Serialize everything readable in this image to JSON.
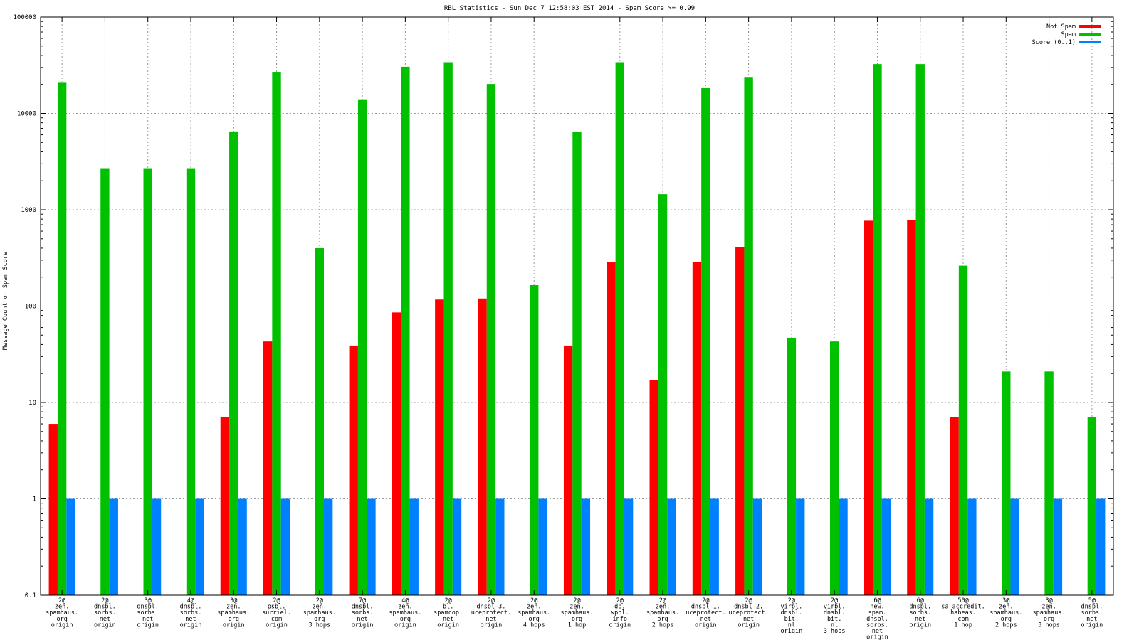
{
  "chart_data": {
    "type": "bar",
    "title": "RBL Statistics - Sun Dec  7 12:58:03 EST 2014 - Spam Score >= 0.99",
    "xlabel": "",
    "ylabel": "Message Count or Spam Score",
    "yscale": "log",
    "ylim": [
      0.1,
      100000
    ],
    "yticks": [
      0.1,
      1,
      10,
      100,
      1000,
      10000,
      100000
    ],
    "ytick_labels": [
      "0.1",
      "1",
      "10",
      "100",
      "1000",
      "10000",
      "100000"
    ],
    "grid": true,
    "legend_position": "top-right",
    "categories": [
      [
        "2@",
        "zen.",
        "spamhaus.",
        "org",
        "origin"
      ],
      [
        "2@",
        "dnsbl.",
        "sorbs.",
        "net",
        "origin"
      ],
      [
        "3@",
        "dnsbl.",
        "sorbs.",
        "net",
        "origin"
      ],
      [
        "4@",
        "dnsbl.",
        "sorbs.",
        "net",
        "origin"
      ],
      [
        "3@",
        "zen.",
        "spamhaus.",
        "org",
        "origin"
      ],
      [
        "2@",
        "psbl.",
        "surriel.",
        "com",
        "origin"
      ],
      [
        "2@",
        "zen.",
        "spamhaus.",
        "org",
        "3 hops"
      ],
      [
        "7@",
        "dnsbl.",
        "sorbs.",
        "net",
        "origin"
      ],
      [
        "4@",
        "zen.",
        "spamhaus.",
        "org",
        "origin"
      ],
      [
        "2@",
        "bl.",
        "spamcop.",
        "net",
        "origin"
      ],
      [
        "2@",
        "dnsbl-3.",
        "uceprotect.",
        "net",
        "origin"
      ],
      [
        "2@",
        "zen.",
        "spamhaus.",
        "org",
        "4 hops"
      ],
      [
        "2@",
        "zen.",
        "spamhaus.",
        "org",
        "1 hop"
      ],
      [
        "2@",
        "db.",
        "wpbl.",
        "info",
        "origin"
      ],
      [
        "2@",
        "zen.",
        "spamhaus.",
        "org",
        "2 hops"
      ],
      [
        "2@",
        "dnsbl-1.",
        "uceprotect.",
        "net",
        "origin"
      ],
      [
        "2@",
        "dnsbl-2.",
        "uceprotect.",
        "net",
        "origin"
      ],
      [
        "2@",
        "virbl.",
        "dnsbl.",
        "bit.",
        "nl",
        "origin"
      ],
      [
        "2@",
        "virbl.",
        "dnsbl.",
        "bit.",
        "nl",
        "3 hops"
      ],
      [
        "6@",
        "new.",
        "spam.",
        "dnsbl.",
        "sorbs.",
        "net",
        "origin"
      ],
      [
        "6@",
        "dnsbl.",
        "sorbs.",
        "net",
        "origin"
      ],
      [
        "50@",
        "sa-accredit.",
        "habeas.",
        "com",
        "1 hop"
      ],
      [
        "3@",
        "zen.",
        "spamhaus.",
        "org",
        "2 hops"
      ],
      [
        "3@",
        "zen.",
        "spamhaus.",
        "org",
        "3 hops"
      ],
      [
        "5@",
        "dnsbl.",
        "sorbs.",
        "net",
        "origin"
      ]
    ],
    "series": [
      {
        "name": "Not Spam",
        "color": "#ff0000",
        "values": [
          6,
          0,
          0,
          0,
          7,
          43,
          0,
          39,
          86,
          117,
          120,
          0,
          39,
          285,
          17,
          285,
          410,
          0,
          0,
          770,
          780,
          7,
          0,
          0,
          0
        ]
      },
      {
        "name": "Spam",
        "color": "#00c000",
        "values": [
          20800,
          2700,
          2700,
          2700,
          6500,
          27000,
          400,
          14000,
          30500,
          34000,
          20200,
          165,
          6400,
          34000,
          1450,
          18300,
          23900,
          47,
          43,
          32500,
          32500,
          263,
          21,
          21,
          7
        ]
      },
      {
        "name": "Score (0..1)",
        "color": "#0080ff",
        "values": [
          1,
          1,
          1,
          1,
          1,
          1,
          1,
          1,
          1,
          1,
          1,
          1,
          1,
          1,
          1,
          1,
          1,
          1,
          1,
          1,
          1,
          1,
          1,
          1,
          1
        ]
      }
    ]
  }
}
